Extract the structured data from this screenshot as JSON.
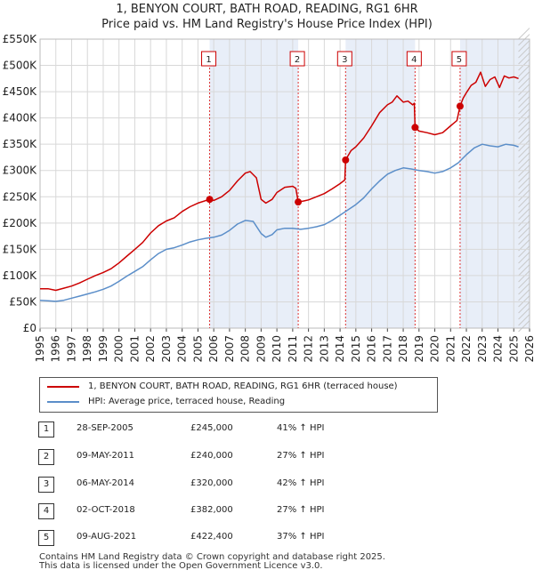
{
  "title_line1": "1, BENYON COURT, BATH ROAD, READING, RG1 6HR",
  "title_line2": "Price paid vs. HM Land Registry's House Price Index (HPI)",
  "colors": {
    "price_line": "#cc0000",
    "hpi_line": "#5b8ec9",
    "marker_box": "#cc0000",
    "shade": "#e8eef8"
  },
  "chart_data": {
    "type": "line",
    "x_range": [
      1995,
      2026
    ],
    "ylim": [
      0,
      550000
    ],
    "y_ticks": [
      {
        "value": 0,
        "label": "£0"
      },
      {
        "value": 50000,
        "label": "£50K"
      },
      {
        "value": 100000,
        "label": "£100K"
      },
      {
        "value": 150000,
        "label": "£150K"
      },
      {
        "value": 200000,
        "label": "£200K"
      },
      {
        "value": 250000,
        "label": "£250K"
      },
      {
        "value": 300000,
        "label": "£300K"
      },
      {
        "value": 350000,
        "label": "£350K"
      },
      {
        "value": 400000,
        "label": "£400K"
      },
      {
        "value": 450000,
        "label": "£450K"
      },
      {
        "value": 500000,
        "label": "£500K"
      },
      {
        "value": 550000,
        "label": "£550K"
      }
    ],
    "x_ticks": [
      "1995",
      "1996",
      "1997",
      "1998",
      "1999",
      "2000",
      "2001",
      "2002",
      "2003",
      "2004",
      "2005",
      "2006",
      "2007",
      "2008",
      "2009",
      "2010",
      "2011",
      "2012",
      "2013",
      "2014",
      "2015",
      "2016",
      "2017",
      "2018",
      "2019",
      "2020",
      "2021",
      "2022",
      "2023",
      "2024",
      "2025",
      "2026"
    ],
    "series": [
      {
        "name": "1, BENYON COURT, BATH ROAD, READING, RG1 6HR (terraced house)",
        "color": "#cc0000",
        "points": [
          [
            1995.0,
            75000
          ],
          [
            1995.5,
            75000
          ],
          [
            1996.0,
            72000
          ],
          [
            1996.5,
            76000
          ],
          [
            1997.0,
            80000
          ],
          [
            1997.5,
            86000
          ],
          [
            1998.0,
            93000
          ],
          [
            1998.5,
            100000
          ],
          [
            1999.0,
            106000
          ],
          [
            1999.5,
            113000
          ],
          [
            2000.0,
            124000
          ],
          [
            2000.5,
            137000
          ],
          [
            2001.0,
            150000
          ],
          [
            2001.5,
            163000
          ],
          [
            2002.0,
            181000
          ],
          [
            2002.5,
            195000
          ],
          [
            2003.0,
            204000
          ],
          [
            2003.5,
            210000
          ],
          [
            2004.0,
            222000
          ],
          [
            2004.5,
            231000
          ],
          [
            2005.0,
            238000
          ],
          [
            2005.74,
            245000
          ],
          [
            2006.0,
            243000
          ],
          [
            2006.5,
            250000
          ],
          [
            2007.0,
            262000
          ],
          [
            2007.5,
            280000
          ],
          [
            2008.0,
            295000
          ],
          [
            2008.3,
            298000
          ],
          [
            2008.7,
            286000
          ],
          [
            2009.0,
            245000
          ],
          [
            2009.3,
            238000
          ],
          [
            2009.7,
            245000
          ],
          [
            2010.0,
            258000
          ],
          [
            2010.5,
            268000
          ],
          [
            2011.0,
            270000
          ],
          [
            2011.2,
            266000
          ],
          [
            2011.35,
            240000
          ],
          [
            2011.7,
            242000
          ],
          [
            2012.0,
            244000
          ],
          [
            2012.5,
            250000
          ],
          [
            2013.0,
            256000
          ],
          [
            2013.5,
            265000
          ],
          [
            2014.0,
            275000
          ],
          [
            2014.3,
            282000
          ],
          [
            2014.35,
            320000
          ],
          [
            2014.7,
            338000
          ],
          [
            2015.0,
            345000
          ],
          [
            2015.5,
            362000
          ],
          [
            2016.0,
            385000
          ],
          [
            2016.5,
            410000
          ],
          [
            2017.0,
            425000
          ],
          [
            2017.3,
            430000
          ],
          [
            2017.6,
            442000
          ],
          [
            2018.0,
            430000
          ],
          [
            2018.3,
            432000
          ],
          [
            2018.6,
            425000
          ],
          [
            2018.7,
            428000
          ],
          [
            2018.75,
            382000
          ],
          [
            2019.0,
            375000
          ],
          [
            2019.5,
            372000
          ],
          [
            2020.0,
            368000
          ],
          [
            2020.5,
            372000
          ],
          [
            2021.0,
            385000
          ],
          [
            2021.4,
            395000
          ],
          [
            2021.6,
            422400
          ],
          [
            2021.8,
            438000
          ],
          [
            2022.0,
            448000
          ],
          [
            2022.3,
            462000
          ],
          [
            2022.6,
            468000
          ],
          [
            2022.9,
            487000
          ],
          [
            2023.2,
            460000
          ],
          [
            2023.5,
            473000
          ],
          [
            2023.8,
            478000
          ],
          [
            2024.1,
            458000
          ],
          [
            2024.4,
            480000
          ],
          [
            2024.7,
            476000
          ],
          [
            2025.0,
            478000
          ],
          [
            2025.3,
            475000
          ]
        ]
      },
      {
        "name": "HPI: Average price, terraced house, Reading",
        "color": "#5b8ec9",
        "points": [
          [
            1995.0,
            53000
          ],
          [
            1995.5,
            52000
          ],
          [
            1996.0,
            51000
          ],
          [
            1996.5,
            53000
          ],
          [
            1997.0,
            57000
          ],
          [
            1997.5,
            61000
          ],
          [
            1998.0,
            65000
          ],
          [
            1998.5,
            69000
          ],
          [
            1999.0,
            74000
          ],
          [
            1999.5,
            80000
          ],
          [
            2000.0,
            89000
          ],
          [
            2000.5,
            99000
          ],
          [
            2001.0,
            108000
          ],
          [
            2001.5,
            117000
          ],
          [
            2002.0,
            130000
          ],
          [
            2002.5,
            142000
          ],
          [
            2003.0,
            150000
          ],
          [
            2003.5,
            153000
          ],
          [
            2004.0,
            158000
          ],
          [
            2004.5,
            164000
          ],
          [
            2005.0,
            168000
          ],
          [
            2005.5,
            171000
          ],
          [
            2006.0,
            173000
          ],
          [
            2006.5,
            177000
          ],
          [
            2007.0,
            186000
          ],
          [
            2007.5,
            198000
          ],
          [
            2008.0,
            205000
          ],
          [
            2008.5,
            203000
          ],
          [
            2009.0,
            180000
          ],
          [
            2009.3,
            173000
          ],
          [
            2009.7,
            178000
          ],
          [
            2010.0,
            187000
          ],
          [
            2010.5,
            190000
          ],
          [
            2011.0,
            190000
          ],
          [
            2011.5,
            188000
          ],
          [
            2012.0,
            190000
          ],
          [
            2012.5,
            193000
          ],
          [
            2013.0,
            197000
          ],
          [
            2013.5,
            205000
          ],
          [
            2014.0,
            215000
          ],
          [
            2014.5,
            225000
          ],
          [
            2015.0,
            235000
          ],
          [
            2015.5,
            248000
          ],
          [
            2016.0,
            265000
          ],
          [
            2016.5,
            280000
          ],
          [
            2017.0,
            293000
          ],
          [
            2017.5,
            300000
          ],
          [
            2018.0,
            305000
          ],
          [
            2018.5,
            303000
          ],
          [
            2019.0,
            300000
          ],
          [
            2019.5,
            298000
          ],
          [
            2020.0,
            295000
          ],
          [
            2020.5,
            298000
          ],
          [
            2021.0,
            305000
          ],
          [
            2021.5,
            315000
          ],
          [
            2022.0,
            330000
          ],
          [
            2022.5,
            343000
          ],
          [
            2023.0,
            350000
          ],
          [
            2023.5,
            347000
          ],
          [
            2024.0,
            345000
          ],
          [
            2024.5,
            350000
          ],
          [
            2025.0,
            348000
          ],
          [
            2025.3,
            345000
          ]
        ]
      }
    ],
    "sales": [
      {
        "id": "1",
        "x": 2005.74,
        "value": 245000
      },
      {
        "id": "2",
        "x": 2011.35,
        "value": 240000
      },
      {
        "id": "3",
        "x": 2014.35,
        "value": 320000
      },
      {
        "id": "4",
        "x": 2018.75,
        "value": 382000
      },
      {
        "id": "5",
        "x": 2021.6,
        "value": 422400
      }
    ],
    "shaded_ranges": [
      [
        2005.74,
        2011.35
      ],
      [
        2014.35,
        2018.75
      ],
      [
        2021.6,
        2026
      ]
    ],
    "forecast_start": 2025.3
  },
  "legend": {
    "price_label": "1, BENYON COURT, BATH ROAD, READING, RG1 6HR (terraced house)",
    "hpi_label": "HPI: Average price, terraced house, Reading"
  },
  "transactions": [
    {
      "num": "1",
      "date": "28-SEP-2005",
      "price": "£245,000",
      "hpi": "41% ↑ HPI"
    },
    {
      "num": "2",
      "date": "09-MAY-2011",
      "price": "£240,000",
      "hpi": "27% ↑ HPI"
    },
    {
      "num": "3",
      "date": "06-MAY-2014",
      "price": "£320,000",
      "hpi": "42% ↑ HPI"
    },
    {
      "num": "4",
      "date": "02-OCT-2018",
      "price": "£382,000",
      "hpi": "27% ↑ HPI"
    },
    {
      "num": "5",
      "date": "09-AUG-2021",
      "price": "£422,400",
      "hpi": "37% ↑ HPI"
    }
  ],
  "footer_line1": "Contains HM Land Registry data © Crown copyright and database right 2025.",
  "footer_line2": "This data is licensed under the Open Government Licence v3.0."
}
